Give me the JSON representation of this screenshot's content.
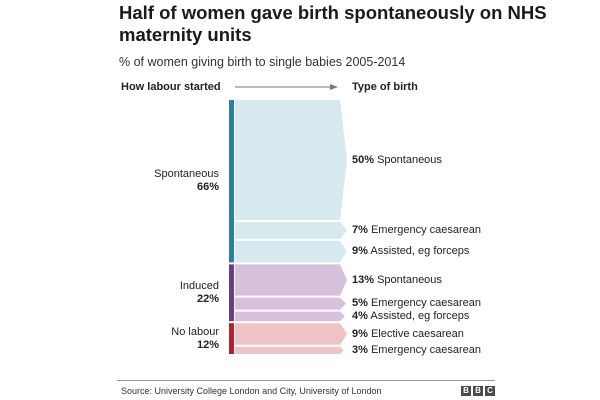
{
  "title": "Half of women gave birth spontaneously on NHS maternity units",
  "subtitle": "% of women giving birth to single babies 2005-2014",
  "column_headers": {
    "left": "How labour started",
    "right": "Type of birth"
  },
  "source": "Source: University College London and City, University of London",
  "logo": {
    "letters": [
      "B",
      "B",
      "C"
    ],
    "icon": "bbc-logo"
  },
  "colors": {
    "spontaneous_bar": "#2a7fa3",
    "spontaneous_fill": "#d5e9ee",
    "induced_bar": "#6a3b8c",
    "induced_fill": "#d7c0dc",
    "nolabour_bar": "#b3212e",
    "nolabour_fill": "#efc3c6"
  },
  "chart_data": {
    "type": "sankey",
    "sources": [
      {
        "name": "Spontaneous",
        "value": 66,
        "value_label": "66%",
        "targets": [
          {
            "name": "Spontaneous",
            "value": 50,
            "value_label": "50%"
          },
          {
            "name": "Emergency caesarean",
            "value": 7,
            "value_label": "7%"
          },
          {
            "name": "Assisted, eg forceps",
            "value": 9,
            "value_label": "9%"
          }
        ]
      },
      {
        "name": "Induced",
        "value": 22,
        "value_label": "22%",
        "targets": [
          {
            "name": "Spontaneous",
            "value": 13,
            "value_label": "13%"
          },
          {
            "name": "Emergency caesarean",
            "value": 5,
            "value_label": "5%"
          },
          {
            "name": "Assisted, eg forceps",
            "value": 4,
            "value_label": "4%"
          }
        ]
      },
      {
        "name": "No labour",
        "value": 12,
        "value_label": "12%",
        "targets": [
          {
            "name": "Elective caesarean",
            "value": 9,
            "value_label": "9%"
          },
          {
            "name": "Emergency caesarean",
            "value": 3,
            "value_label": "3%"
          }
        ]
      }
    ]
  }
}
